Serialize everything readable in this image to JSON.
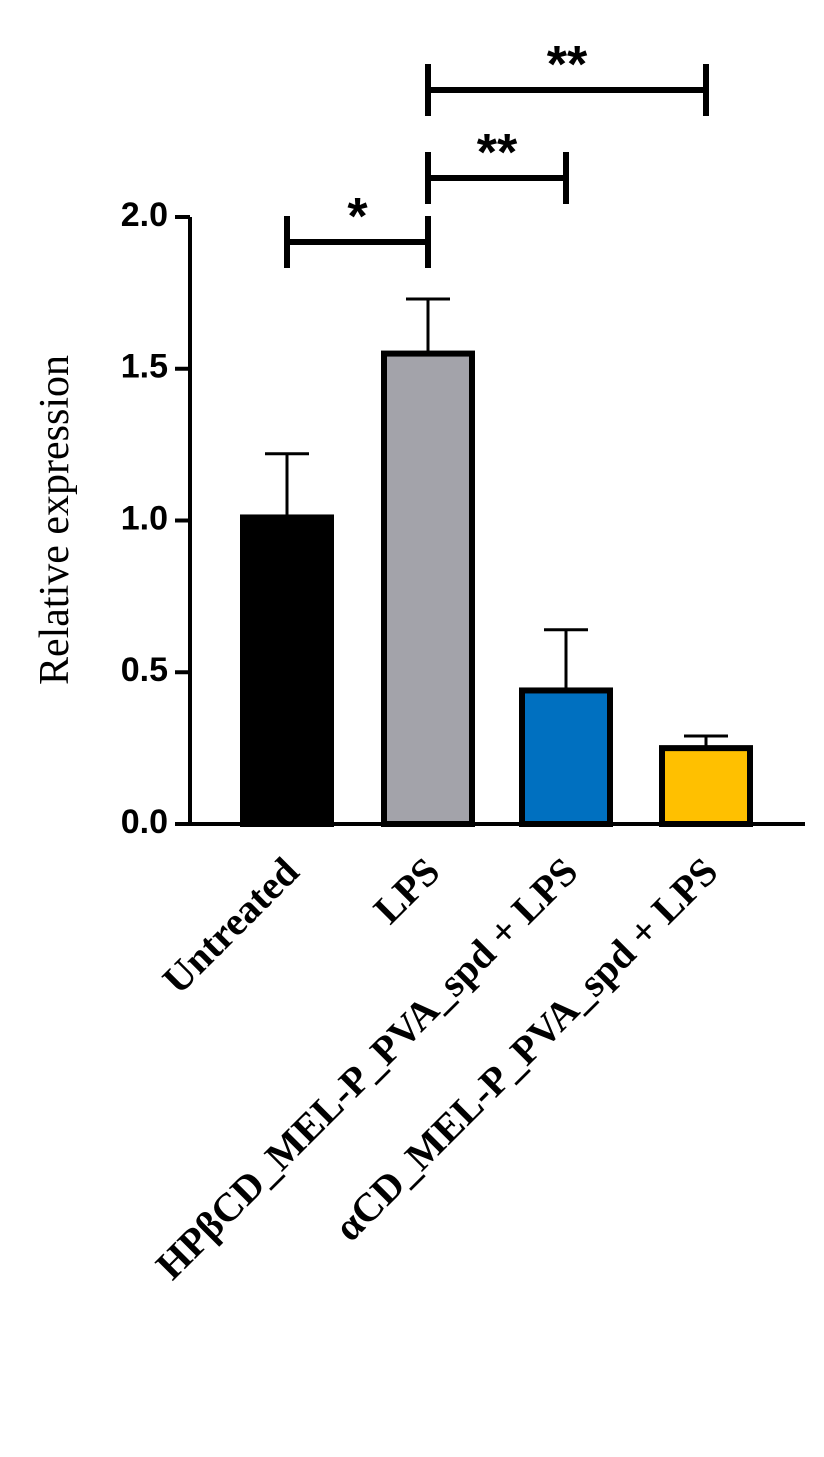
{
  "chart_data": {
    "type": "bar",
    "y_label": "Relative expression",
    "categories": [
      "Untreated",
      "LPS",
      "HPβCD_MEL-P_PVA_spd + LPS",
      "αCD_MEL-P_PVA_spd + LPS"
    ],
    "values": [
      1.01,
      1.55,
      0.44,
      0.25
    ],
    "errors": [
      0.21,
      0.18,
      0.2,
      0.04
    ],
    "colors": [
      "#000000",
      "#a3a3aa",
      "#0070c0",
      "#ffc000"
    ],
    "ylim": [
      0,
      2
    ],
    "yticks": [
      {
        "value": 0,
        "label": "0.0"
      },
      {
        "value": 0.5,
        "label": "0.5"
      },
      {
        "value": 1,
        "label": "1.0"
      },
      {
        "value": 1.5,
        "label": "1.5"
      },
      {
        "value": 2,
        "label": "2.0"
      }
    ],
    "comparisons": [
      {
        "pair": [
          0,
          1
        ],
        "label": "*"
      },
      {
        "pair": [
          1,
          2
        ],
        "label": "**"
      },
      {
        "pair": [
          1,
          3
        ],
        "label": "**"
      }
    ]
  }
}
